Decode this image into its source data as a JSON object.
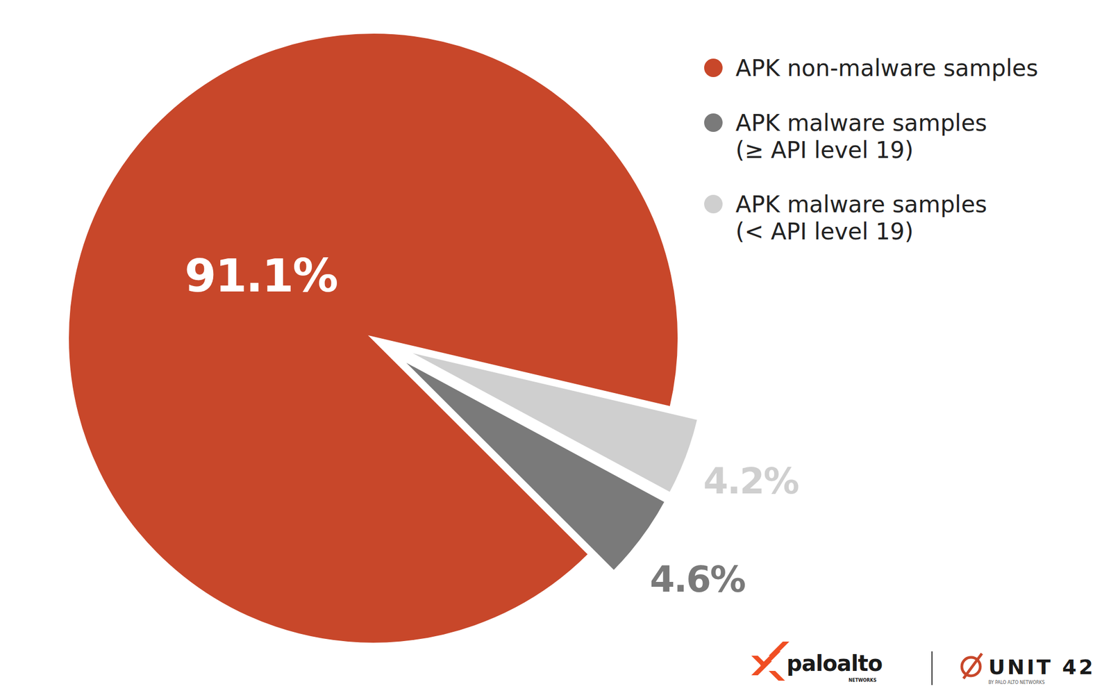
{
  "chart_data": {
    "type": "pie",
    "categories": [
      "APK non-malware samples",
      "APK malware samples (≥ API level 19)",
      "APK malware samples (< API level 19)"
    ],
    "values": [
      91.1,
      4.6,
      4.2
    ],
    "value_labels": [
      "91.1%",
      "4.6%",
      "4.2%"
    ],
    "colors": [
      "#c8472a",
      "#7a7a7a",
      "#cfcfcf"
    ],
    "data_labels": true,
    "legend": "upper right",
    "annotations": [
      "paloalto",
      "NETWORKS",
      "UNIT 42",
      "BY PALO ALTO NETWORKS"
    ]
  }
}
